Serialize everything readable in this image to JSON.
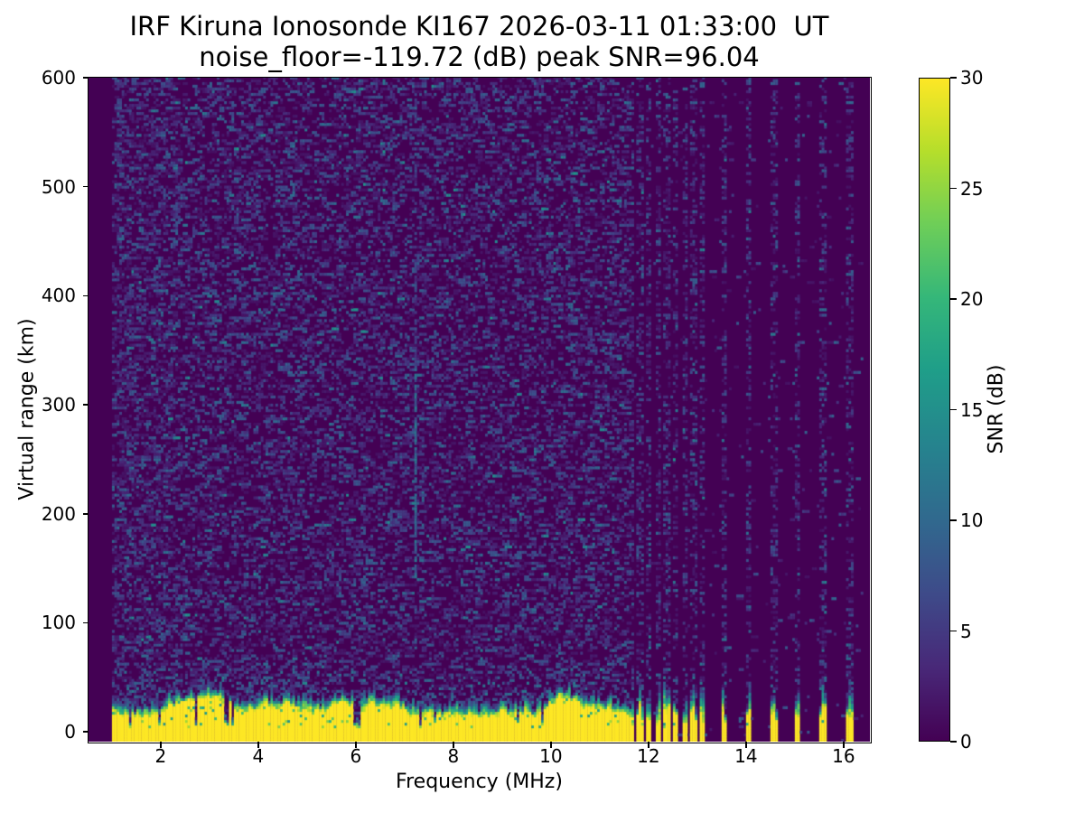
{
  "title": {
    "line1": "IRF Kiruna Ionosonde KI167 2026-03-11 01:33:00  UT",
    "line2": "noise_floor=-119.72 (dB) peak SNR=96.04"
  },
  "chart_data": {
    "type": "heatmap",
    "title": "IRF Kiruna Ionosonde KI167 2026-03-11 01:33:00  UT",
    "subtitle": "noise_floor=-119.72 (dB) peak SNR=96.04",
    "station": "IRF Kiruna Ionosonde KI167",
    "timestamp_ut": "2026-03-11 01:33:00",
    "noise_floor_db": -119.72,
    "peak_snr_db": 96.04,
    "xlabel": "Frequency (MHz)",
    "ylabel": "Virtual range (km)",
    "colorbar_label": "SNR (dB)",
    "colormap": "viridis",
    "xlim": [
      0.52,
      16.54
    ],
    "ylim": [
      -9,
      600
    ],
    "x_ticks": [
      2,
      4,
      6,
      8,
      10,
      12,
      14,
      16
    ],
    "y_ticks": [
      0,
      100,
      200,
      300,
      400,
      500,
      600
    ],
    "colorbar_ticks": [
      0,
      5,
      10,
      15,
      20,
      25,
      30
    ],
    "colorbar_range": [
      0,
      30
    ],
    "grid": false,
    "freq_start_mhz": 1.0,
    "freq_stop_mhz": 16.4,
    "freq_step_mhz": 0.05,
    "range_step_km": 2.5,
    "ground_echo": {
      "description": "strong saturated echo band at bottom of ionogram",
      "snr_db": 30,
      "top_km_min": 13,
      "top_km_max": 32,
      "max_freq_mhz": 11.7
    },
    "interference_stripes_mhz": [
      11.83,
      12.02,
      12.2,
      12.38,
      12.56,
      12.74,
      12.93,
      13.1,
      13.55,
      14.06,
      14.57,
      15.06,
      15.57,
      16.12
    ],
    "weak_vertical_line_mhz": 7.2,
    "background_snr_db": 0,
    "noise_speckle_snr_db": [
      1.5,
      13
    ],
    "seed": 42
  }
}
